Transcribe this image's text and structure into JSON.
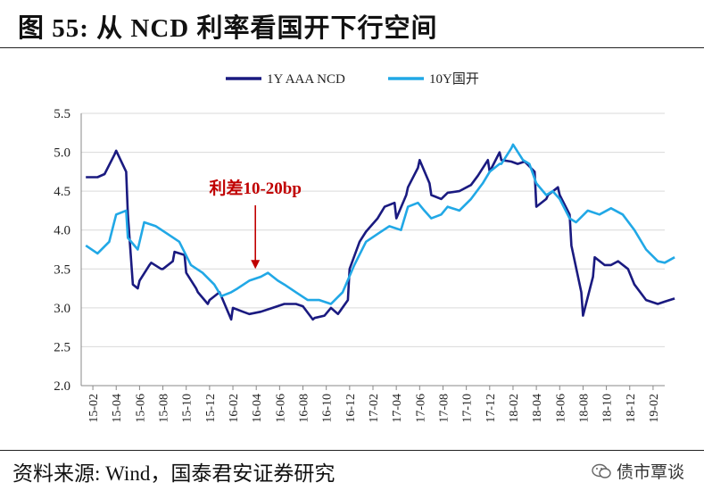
{
  "header": {
    "title": "图 55:  从 NCD 利率看国开下行空间"
  },
  "footer": {
    "source": "资料来源:  Wind，国泰君安证券研究",
    "brand": "债市覃谈"
  },
  "chart_data": {
    "type": "line",
    "ylim": [
      2.0,
      5.5
    ],
    "yticks": [
      "2.0",
      "2.5",
      "3.0",
      "3.5",
      "4.0",
      "4.5",
      "5.0",
      "5.5"
    ],
    "xticks": [
      "15-02",
      "15-04",
      "15-06",
      "15-08",
      "15-10",
      "15-12",
      "16-02",
      "16-04",
      "16-06",
      "16-08",
      "16-10",
      "16-12",
      "17-02",
      "17-04",
      "17-06",
      "17-08",
      "17-10",
      "17-12",
      "18-02",
      "18-04",
      "18-06",
      "18-08",
      "18-10",
      "18-12",
      "19-02"
    ],
    "grid": true,
    "legend_position": "top",
    "annotation": {
      "text": "利差10-20bp",
      "x": "16-04",
      "arrow_to_y": 3.5,
      "color": "#c00000"
    },
    "series": [
      {
        "name": "1Y AAA NCD",
        "color": "#1a1a80",
        "x": [
          "15-01",
          "15-02",
          "15-03",
          "15-03",
          "15-04",
          "15-04",
          "15-05",
          "15-05",
          "15-05",
          "15-06",
          "15-06",
          "15-07",
          "15-07",
          "15-08",
          "15-08",
          "15-09",
          "15-09",
          "15-10",
          "15-10",
          "15-11",
          "15-11",
          "15-12",
          "15-12",
          "16-01",
          "16-01",
          "16-02",
          "16-02",
          "16-03",
          "16-04",
          "16-05",
          "16-06",
          "16-07",
          "16-08",
          "16-08",
          "16-09",
          "16-09",
          "16-10",
          "16-11",
          "16-11",
          "16-12",
          "16-12",
          "17-01",
          "17-02",
          "17-03",
          "17-03",
          "17-04",
          "17-04",
          "17-05",
          "17-05",
          "17-06",
          "17-06",
          "17-07",
          "17-07",
          "17-08",
          "17-09",
          "17-10",
          "17-11",
          "17-11",
          "17-12",
          "17-12",
          "18-01",
          "18-01",
          "18-02",
          "18-03",
          "18-03",
          "18-04",
          "18-04",
          "18-05",
          "18-05",
          "18-06",
          "18-06",
          "18-07",
          "18-07",
          "18-08",
          "18-08",
          "18-09",
          "18-09",
          "18-10",
          "18-11",
          "18-11",
          "18-12",
          "19-01",
          "19-02",
          "19-03",
          "19-03"
        ],
        "values": [
          4.68,
          4.68,
          4.72,
          4.97,
          5.02,
          4.75,
          4.2,
          3.3,
          3.25,
          3.35,
          3.55,
          3.58,
          3.5,
          3.5,
          3.6,
          3.72,
          3.68,
          3.45,
          3.25,
          3.2,
          3.05,
          3.1,
          3.2,
          3.15,
          2.85,
          3.0,
          2.95,
          2.92,
          2.95,
          3.0,
          3.05,
          3.05,
          3.02,
          2.85,
          2.87,
          2.9,
          3.0,
          2.92,
          3.1,
          3.5,
          3.85,
          3.98,
          4.15,
          4.3,
          4.35,
          4.15,
          4.45,
          4.55,
          4.8,
          4.9,
          4.6,
          4.45,
          4.4,
          4.48,
          4.5,
          4.58,
          4.7,
          4.9,
          4.75,
          5.0,
          4.9,
          4.88,
          4.85,
          4.88,
          4.75,
          4.3,
          4.4,
          4.45,
          4.55,
          4.45,
          4.2,
          3.8,
          3.2,
          2.9,
          3.4,
          3.65,
          3.55,
          3.55,
          3.6,
          3.5,
          3.3,
          3.1,
          3.05,
          3.08,
          3.12
        ]
      },
      {
        "name": "10Y国开",
        "color": "#21a8e6",
        "x": [
          "15-01",
          "15-02",
          "15-03",
          "15-04",
          "15-04",
          "15-05",
          "15-05",
          "15-06",
          "15-07",
          "15-08",
          "15-09",
          "15-10",
          "15-11",
          "15-12",
          "16-01",
          "16-01",
          "16-02",
          "16-03",
          "16-04",
          "16-05",
          "16-05",
          "16-06",
          "16-07",
          "16-08",
          "16-09",
          "16-10",
          "16-11",
          "16-12",
          "17-01",
          "17-02",
          "17-03",
          "17-04",
          "17-05",
          "17-05",
          "17-06",
          "17-07",
          "17-07",
          "17-08",
          "17-09",
          "17-10",
          "17-11",
          "17-12",
          "17-12",
          "18-01",
          "18-01",
          "18-02",
          "18-02",
          "18-03",
          "18-04",
          "18-04",
          "18-05",
          "18-06",
          "18-06",
          "18-07",
          "18-08",
          "18-09",
          "18-10",
          "18-11",
          "18-12",
          "19-01",
          "19-02",
          "19-03",
          "19-03"
        ],
        "values": [
          3.8,
          3.7,
          3.85,
          4.2,
          4.25,
          3.9,
          3.75,
          4.1,
          4.05,
          3.95,
          3.85,
          3.55,
          3.45,
          3.3,
          3.15,
          3.2,
          3.25,
          3.35,
          3.4,
          3.45,
          3.35,
          3.3,
          3.2,
          3.1,
          3.1,
          3.05,
          3.2,
          3.55,
          3.85,
          3.95,
          4.05,
          4.0,
          4.3,
          4.35,
          4.25,
          4.15,
          4.2,
          4.3,
          4.25,
          4.4,
          4.6,
          4.75,
          4.85,
          4.85,
          5.05,
          5.1,
          4.9,
          4.85,
          4.6,
          4.45,
          4.5,
          4.4,
          4.15,
          4.1,
          4.25,
          4.2,
          4.28,
          4.2,
          4.0,
          3.75,
          3.6,
          3.58,
          3.65
        ]
      }
    ]
  }
}
